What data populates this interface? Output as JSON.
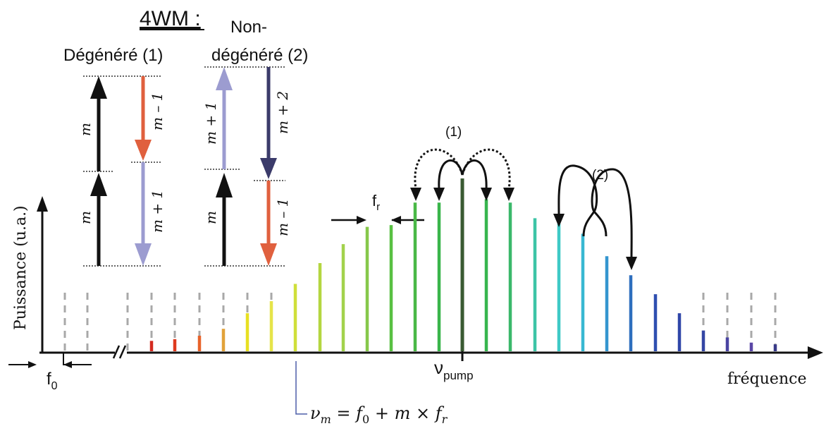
{
  "title": "4WM :",
  "col1_title": "Dégénéré (1)",
  "col2_title_line1": "Non-",
  "col2_title_line2": "dégénéré (2)",
  "arrow_labels": {
    "d_up_top": "m",
    "d_up_bottom": "m",
    "d_down_top": "m – 1",
    "d_down_bottom": "m + 1",
    "n_up_top": "m + 1",
    "n_up_bottom": "m",
    "n_down_top": "m + 2",
    "n_down_bottom": "m – 1"
  },
  "ylabel": "Puissance (u.a.)",
  "xlabel": "fréquence",
  "f0_label": "f",
  "f0_sub": "0",
  "fr_label": "f",
  "fr_sub": "r",
  "pump_label": "ν",
  "pump_sub": "pump",
  "process1_label": "(1)",
  "process2_label": "(2)",
  "formula": {
    "nu": "ν",
    "nu_sub": "m",
    "eq": " = ",
    "f0": "f",
    "f0_sub": "0",
    "plus": " + m × ",
    "fr": "f",
    "fr_sub": "r"
  },
  "colors": {
    "up_black": "#111111",
    "down_red": "#e0603e",
    "down_lavender": "#9c9cd0",
    "up_lavender": "#9c9cd0",
    "down_navy": "#3b3b6a",
    "grey_dashed": "#a8a8a8",
    "pump": "#3a5a32"
  },
  "chart_data": {
    "type": "bar",
    "title": "",
    "xlabel": "fréquence",
    "ylabel": "Puissance (u.a.)",
    "note": "comb lines, left to right, relative power",
    "lines": [
      {
        "x": 1,
        "power": 0.0,
        "color": "#a8a8a8"
      },
      {
        "x": 2,
        "power": 0.0,
        "color": "#a8a8a8"
      },
      {
        "x": 3,
        "power": 0.0,
        "color": "#a8a8a8"
      },
      {
        "x": 4,
        "power": 0.06,
        "color": "#d42a1f"
      },
      {
        "x": 5,
        "power": 0.07,
        "color": "#de3a1f"
      },
      {
        "x": 6,
        "power": 0.09,
        "color": "#e8632a"
      },
      {
        "x": 7,
        "power": 0.13,
        "color": "#e2a23a"
      },
      {
        "x": 8,
        "power": 0.22,
        "color": "#e8e022"
      },
      {
        "x": 9,
        "power": 0.29,
        "color": "#e6e44a"
      },
      {
        "x": 10,
        "power": 0.39,
        "color": "#cfdf3a"
      },
      {
        "x": 11,
        "power": 0.51,
        "color": "#b4d640"
      },
      {
        "x": 12,
        "power": 0.62,
        "color": "#a2d24c"
      },
      {
        "x": 13,
        "power": 0.72,
        "color": "#86c84a"
      },
      {
        "x": 14,
        "power": 0.73,
        "color": "#58c042"
      },
      {
        "x": 15,
        "power": 0.86,
        "color": "#49b846"
      },
      {
        "x": 16,
        "power": 0.86,
        "color": "#39b54a"
      },
      {
        "x": 17,
        "power": 1.0,
        "color": "#3a5a32"
      },
      {
        "x": 18,
        "power": 0.88,
        "color": "#37b54e"
      },
      {
        "x": 19,
        "power": 0.86,
        "color": "#3ab86a"
      },
      {
        "x": 20,
        "power": 0.77,
        "color": "#3dc4a6"
      },
      {
        "x": 21,
        "power": 0.74,
        "color": "#3ec9c6"
      },
      {
        "x": 22,
        "power": 0.68,
        "color": "#38b8d2"
      },
      {
        "x": 23,
        "power": 0.55,
        "color": "#3496cf"
      },
      {
        "x": 24,
        "power": 0.44,
        "color": "#2e6fbe"
      },
      {
        "x": 25,
        "power": 0.33,
        "color": "#2f4fb0"
      },
      {
        "x": 26,
        "power": 0.22,
        "color": "#3046a8"
      },
      {
        "x": 27,
        "power": 0.12,
        "color": "#3446a4"
      },
      {
        "x": 28,
        "power": 0.08,
        "color": "#4a44a2"
      },
      {
        "x": 29,
        "power": 0.05,
        "color": "#5a46a6"
      },
      {
        "x": 30,
        "power": 0.04,
        "color": "#383a88"
      }
    ],
    "pump_index": 17,
    "grid": false
  }
}
